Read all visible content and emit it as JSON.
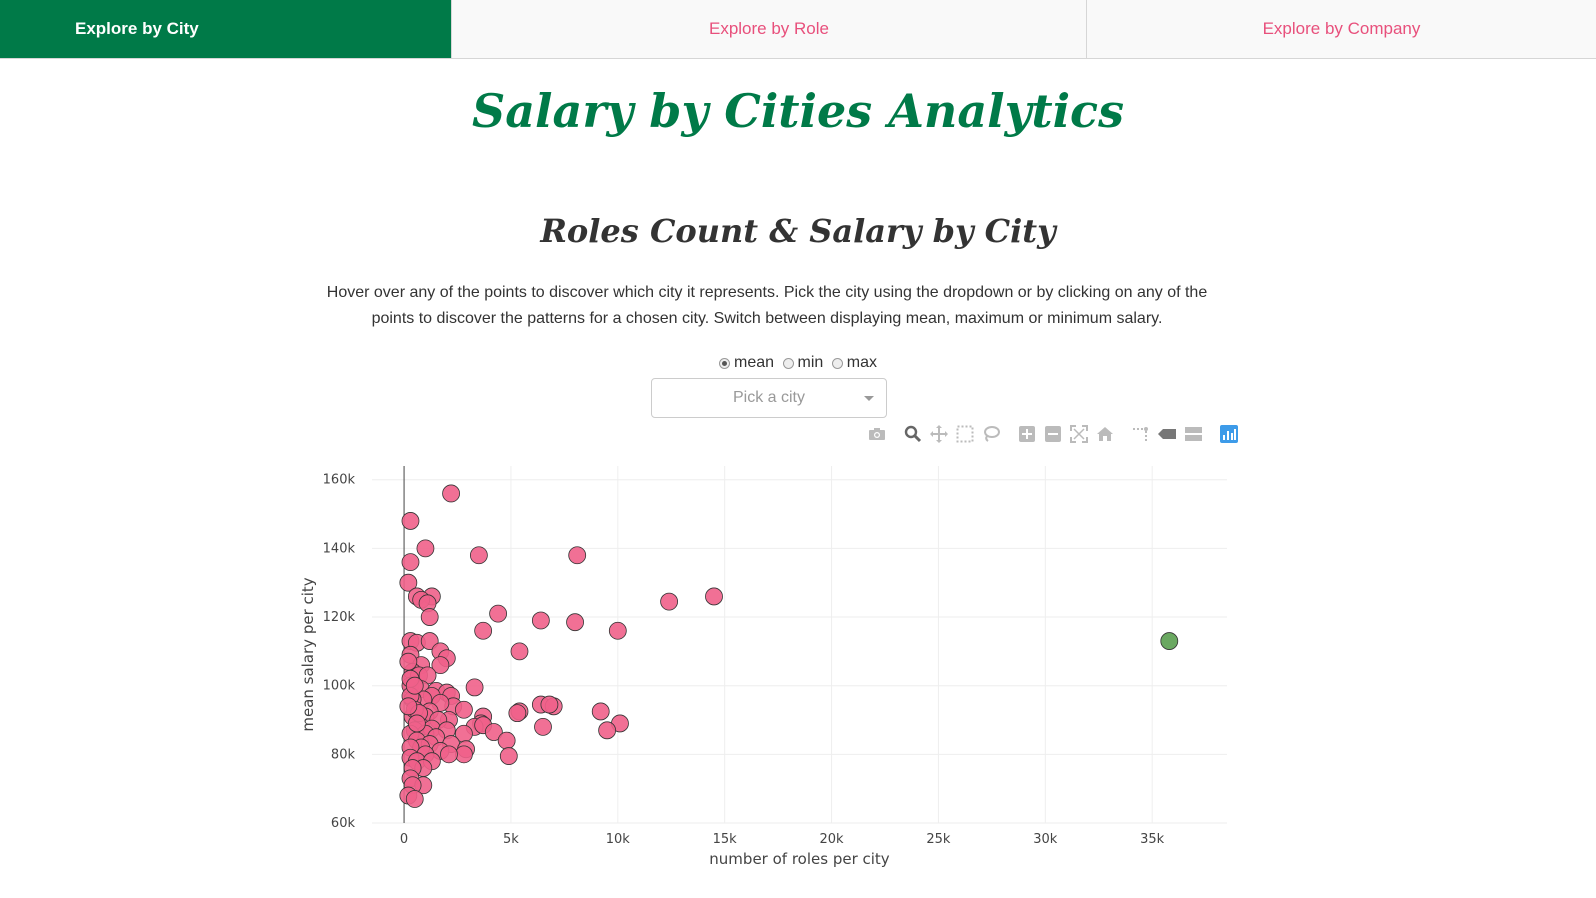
{
  "tabs": [
    {
      "label": "Explore by City",
      "active": true
    },
    {
      "label": "Explore by Role",
      "active": false
    },
    {
      "label": "Explore by Company",
      "active": false
    }
  ],
  "page_title": "Salary by Cities Analytics",
  "section_title": "Roles Count & Salary by City",
  "description": "Hover over any of the points to discover which city it represents. Pick the city using the dropdown or by clicking on any of the points to discover the patterns for a chosen city. Switch between displaying mean, maximum or minimum salary.",
  "radio_options": [
    {
      "label": "mean",
      "checked": true
    },
    {
      "label": "min",
      "checked": false
    },
    {
      "label": "max",
      "checked": false
    }
  ],
  "dropdown": {
    "placeholder": "Pick a city"
  },
  "modebar": [
    "camera-icon",
    "zoom-icon",
    "pan-icon",
    "box-select-icon",
    "lasso-select-icon",
    "zoom-in-icon",
    "zoom-out-icon",
    "autoscale-icon",
    "reset-axes-icon",
    "spike-lines-icon",
    "hover-closest-icon",
    "hover-compare-icon",
    "plotly-logo-icon"
  ],
  "colors": {
    "accent": "#007a48",
    "tab_text": "#e8507c",
    "point": "#f0608a",
    "highlight_point": "#5a9e50"
  },
  "chart_data": {
    "type": "scatter",
    "xlabel": "number of roles per city",
    "ylabel": "mean salary per city",
    "xlim": [
      -1500,
      38500
    ],
    "ylim": [
      60000,
      164000
    ],
    "xticks": [
      0,
      5000,
      10000,
      15000,
      20000,
      25000,
      30000,
      35000
    ],
    "xtick_labels": [
      "0",
      "5k",
      "10k",
      "15k",
      "20k",
      "25k",
      "30k",
      "35k"
    ],
    "yticks": [
      60000,
      80000,
      100000,
      120000,
      140000,
      160000
    ],
    "ytick_labels": [
      "60k",
      "80k",
      "100k",
      "120k",
      "140k",
      "160k"
    ],
    "grid": true,
    "series": [
      {
        "points": [
          [
            2200,
            156000
          ],
          [
            300,
            148000
          ],
          [
            1000,
            140000
          ],
          [
            3500,
            138000
          ],
          [
            8100,
            138000
          ],
          [
            300,
            136000
          ],
          [
            200,
            130000
          ],
          [
            600,
            126000
          ],
          [
            1300,
            126000
          ],
          [
            800,
            125000
          ],
          [
            1100,
            124000
          ],
          [
            14500,
            126000
          ],
          [
            12400,
            124500
          ],
          [
            4400,
            121000
          ],
          [
            1200,
            120000
          ],
          [
            6400,
            119000
          ],
          [
            8000,
            118500
          ],
          [
            3700,
            116000
          ],
          [
            10000,
            116000
          ],
          [
            300,
            113000
          ],
          [
            600,
            112500
          ],
          [
            1200,
            113000
          ],
          [
            5400,
            110000
          ],
          [
            1700,
            110000
          ],
          [
            2000,
            108000
          ],
          [
            300,
            109000
          ],
          [
            1700,
            106000
          ],
          [
            800,
            106000
          ],
          [
            400,
            104000
          ],
          [
            700,
            103000
          ],
          [
            1100,
            103000
          ],
          [
            300,
            100000
          ],
          [
            3300,
            99500
          ],
          [
            800,
            99000
          ],
          [
            1500,
            98500
          ],
          [
            2000,
            98000
          ],
          [
            2200,
            97000
          ],
          [
            1300,
            97000
          ],
          [
            900,
            96000
          ],
          [
            400,
            96000
          ],
          [
            6400,
            94500
          ],
          [
            7000,
            94000
          ],
          [
            6800,
            94500
          ],
          [
            2300,
            94000
          ],
          [
            9200,
            92500
          ],
          [
            1700,
            95000
          ],
          [
            5400,
            92500
          ],
          [
            1200,
            92500
          ],
          [
            2800,
            93000
          ],
          [
            5300,
            92000
          ],
          [
            3700,
            91000
          ],
          [
            400,
            91000
          ],
          [
            1000,
            91000
          ],
          [
            800,
            88000
          ],
          [
            2100,
            90000
          ],
          [
            1600,
            90000
          ],
          [
            10100,
            89000
          ],
          [
            3600,
            89000
          ],
          [
            3300,
            88000
          ],
          [
            3700,
            88500
          ],
          [
            6500,
            88000
          ],
          [
            9500,
            87000
          ],
          [
            500,
            87000
          ],
          [
            1300,
            87500
          ],
          [
            2000,
            87000
          ],
          [
            1000,
            86000
          ],
          [
            4200,
            86500
          ],
          [
            2800,
            86000
          ],
          [
            300,
            86000
          ],
          [
            1500,
            85000
          ],
          [
            4800,
            84000
          ],
          [
            600,
            84000
          ],
          [
            2200,
            83000
          ],
          [
            1200,
            83000
          ],
          [
            800,
            82000
          ],
          [
            2900,
            81500
          ],
          [
            300,
            82000
          ],
          [
            1700,
            81000
          ],
          [
            2800,
            80000
          ],
          [
            4900,
            79500
          ],
          [
            2100,
            80000
          ],
          [
            1000,
            80000
          ],
          [
            300,
            79000
          ],
          [
            600,
            78000
          ],
          [
            1300,
            78000
          ],
          [
            900,
            76000
          ],
          [
            400,
            76000
          ],
          [
            300,
            73000
          ],
          [
            900,
            71000
          ],
          [
            400,
            71000
          ],
          [
            200,
            68000
          ],
          [
            500,
            67000
          ],
          [
            300,
            97000
          ],
          [
            500,
            93000
          ],
          [
            700,
            92000
          ],
          [
            200,
            94000
          ],
          [
            600,
            89000
          ],
          [
            300,
            102000
          ],
          [
            500,
            100000
          ],
          [
            200,
            107000
          ]
        ]
      },
      {
        "points": [
          [
            35800,
            113000
          ]
        ]
      }
    ]
  }
}
